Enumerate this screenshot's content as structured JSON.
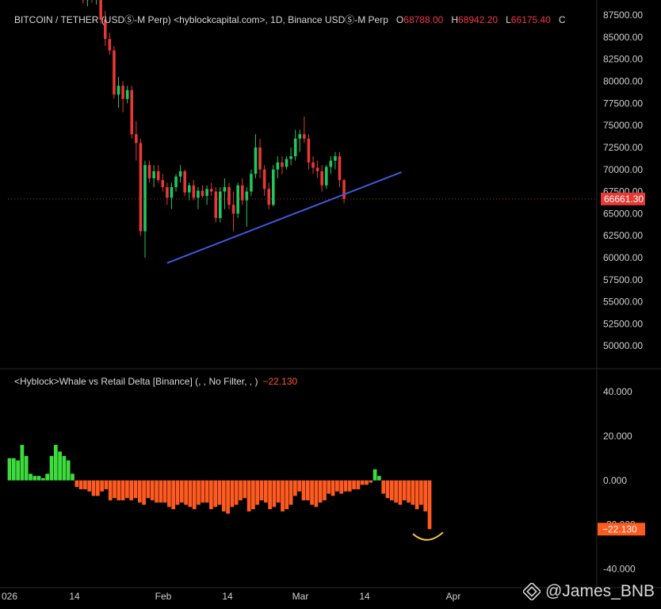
{
  "header": {
    "title": "BITCOIN / TETHER (USDⓈ-M Perp) <hyblockcapital.com>, 1D, Binance USDⓈ-M Perp",
    "o_label": "O",
    "o_value": "68788.00",
    "h_label": "H",
    "h_value": "68942.20",
    "l_label": "L",
    "l_value": "66175.40",
    "c_label": "C"
  },
  "indicator": {
    "title": "<Hyblock>Whale vs Retail Delta [Binance] (, , No Filter, , )",
    "value": "−22.130"
  },
  "watermark": "@James_BNB",
  "colors": {
    "up": "#22c55e",
    "down": "#e53935",
    "pos": "#3ddc3d",
    "neg": "#ff5a1f",
    "trend": "#3b5bdb",
    "highlight": "#f5c242"
  },
  "chart_data": [
    {
      "type": "candlestick",
      "title": "BITCOIN / TETHER (USDⓈ-M Perp)",
      "ylim": [
        47500,
        88500
      ],
      "yticks": [
        "87500.00",
        "85000.00",
        "82500.00",
        "80000.00",
        "77500.00",
        "75000.00",
        "72500.00",
        "70000.00",
        "67500.00",
        "65000.00",
        "62500.00",
        "60000.00",
        "57500.00",
        "55000.00",
        "52500.00",
        "50000.00"
      ],
      "price_line": 66661.3,
      "price_label": "66661.30",
      "xticks": [
        "026",
        "14",
        "Feb",
        "14",
        "Mar",
        "14",
        "Apr"
      ],
      "trendline": {
        "start": [
          "2026-02-06",
          59400
        ],
        "end": [
          "2026-03-31",
          69700
        ]
      },
      "series_start": "2026-01-18",
      "candles": [
        [
          89500,
          90000,
          88800,
          89200
        ],
        [
          89200,
          89800,
          88500,
          89600
        ],
        [
          89600,
          90100,
          88900,
          89300
        ],
        [
          89300,
          89900,
          88700,
          89500
        ],
        [
          89500,
          89700,
          86500,
          87000
        ],
        [
          87000,
          88000,
          84000,
          84800
        ],
        [
          84800,
          85500,
          83000,
          83500
        ],
        [
          83500,
          84000,
          78000,
          78500
        ],
        [
          78500,
          80500,
          77000,
          79500
        ],
        [
          79500,
          80000,
          76500,
          78000
        ],
        [
          78000,
          79500,
          77500,
          79000
        ],
        [
          79000,
          79500,
          73500,
          74000
        ],
        [
          74000,
          75500,
          71000,
          73000
        ],
        [
          73000,
          73500,
          62500,
          63000
        ],
        [
          63000,
          71000,
          60000,
          70500
        ],
        [
          70500,
          71000,
          68500,
          69000
        ],
        [
          69000,
          70500,
          68000,
          69800
        ],
        [
          69800,
          70500,
          68500,
          68800
        ],
        [
          68800,
          69500,
          67500,
          68000
        ],
        [
          68000,
          68500,
          66000,
          66800
        ],
        [
          66800,
          68500,
          65500,
          68000
        ],
        [
          68000,
          69500,
          67500,
          69200
        ],
        [
          69200,
          70500,
          68500,
          69800
        ],
        [
          69800,
          70000,
          67000,
          67400
        ],
        [
          67400,
          68500,
          66500,
          68200
        ],
        [
          68200,
          68800,
          66500,
          66800
        ],
        [
          66800,
          68000,
          65500,
          67600
        ],
        [
          67600,
          68200,
          66800,
          67000
        ],
        [
          67000,
          68200,
          66000,
          67800
        ],
        [
          67800,
          68500,
          67000,
          67500
        ],
        [
          67500,
          68000,
          64000,
          64500
        ],
        [
          64500,
          68000,
          64000,
          67500
        ],
        [
          67500,
          69000,
          65500,
          68000
        ],
        [
          68000,
          68500,
          65500,
          66000
        ],
        [
          66000,
          67500,
          63000,
          65000
        ],
        [
          65000,
          68500,
          64500,
          68200
        ],
        [
          68200,
          69000,
          66000,
          66500
        ],
        [
          66500,
          68000,
          63500,
          67500
        ],
        [
          67500,
          70000,
          67000,
          69500
        ],
        [
          69500,
          74000,
          69000,
          72500
        ],
        [
          72500,
          73500,
          69000,
          70000
        ],
        [
          70000,
          70500,
          67000,
          67800
        ],
        [
          67800,
          68500,
          65500,
          66000
        ],
        [
          66000,
          70500,
          65800,
          70000
        ],
        [
          70000,
          71500,
          69000,
          70800
        ],
        [
          70800,
          71500,
          69500,
          70300
        ],
        [
          70300,
          71500,
          70000,
          71200
        ],
        [
          71200,
          72500,
          70500,
          71500
        ],
        [
          71500,
          74500,
          71000,
          73500
        ],
        [
          73500,
          74500,
          72000,
          74000
        ],
        [
          74000,
          76000,
          73000,
          73500
        ],
        [
          73500,
          74000,
          70000,
          70800
        ],
        [
          70800,
          71500,
          69500,
          70200
        ],
        [
          70200,
          71000,
          69000,
          69800
        ],
        [
          69800,
          70500,
          67500,
          68200
        ],
        [
          68200,
          70500,
          67800,
          70300
        ],
        [
          70300,
          71500,
          69500,
          71000
        ],
        [
          71000,
          72000,
          70000,
          71500
        ],
        [
          71500,
          72000,
          68000,
          68788
        ],
        [
          68788,
          68942,
          66175,
          66661
        ]
      ]
    },
    {
      "type": "bar",
      "title": "<Hyblock>Whale vs Retail Delta [Binance]",
      "ylim": [
        -48,
        50
      ],
      "yticks": [
        "40.000",
        "20.000",
        "0.000",
        "-20.000",
        "-40.000"
      ],
      "value_label": "−22.130",
      "values": [
        10,
        10,
        9,
        16,
        11,
        3,
        2,
        2,
        1,
        3,
        11,
        16,
        13,
        11,
        9,
        3,
        -3,
        -4,
        -4,
        -5,
        -7,
        -7,
        -5,
        -4,
        -9,
        -8,
        -9,
        -9,
        -8,
        -9,
        -8,
        -10,
        -11,
        -8,
        -9,
        -10,
        -10,
        -10,
        -12,
        -13,
        -11,
        -10,
        -11,
        -12,
        -13,
        -11,
        -10,
        -10,
        -13,
        -12,
        -11,
        -14,
        -15,
        -12,
        -11,
        -9,
        -8,
        -14,
        -13,
        -11,
        -9,
        -10,
        -13,
        -12,
        -10,
        -14,
        -13,
        -11,
        -7,
        -5,
        -9,
        -9,
        -11,
        -12,
        -10,
        -9,
        -6,
        -7,
        -5,
        -6,
        -5,
        -5,
        -4,
        -4,
        -2,
        -2,
        -1,
        5,
        2,
        -6,
        -8,
        -9,
        -10,
        -11,
        -9,
        -10,
        -11,
        -13,
        -11,
        -14,
        -22
      ]
    }
  ]
}
